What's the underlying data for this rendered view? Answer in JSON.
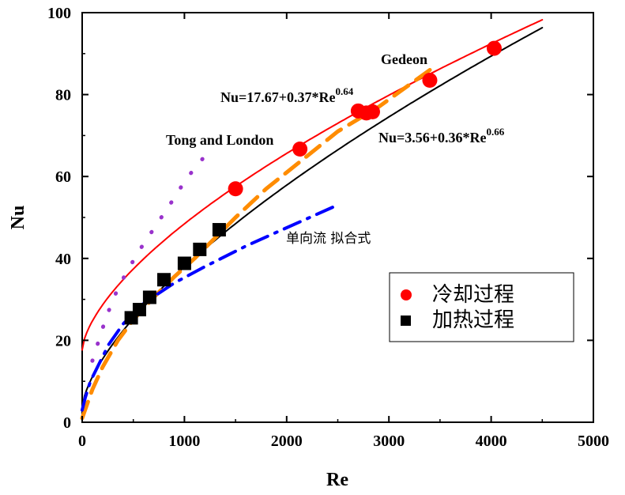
{
  "chart_data": {
    "type": "scatter",
    "xlabel": "Re",
    "ylabel": "Nu",
    "xlim": [
      0,
      5000
    ],
    "ylim": [
      0,
      100
    ],
    "xticks": [
      0,
      1000,
      2000,
      3000,
      4000,
      5000
    ],
    "yticks": [
      0,
      20,
      40,
      60,
      80,
      100
    ],
    "xtick_labels": [
      "0",
      "1000",
      "2000",
      "3000",
      "4000",
      "5000"
    ],
    "ytick_labels": [
      "0",
      "20",
      "40",
      "60",
      "80",
      "100"
    ],
    "grid": false,
    "legend_position": "lower-right",
    "series": [
      {
        "name": "冷却过程",
        "kind": "scatter",
        "marker": "circle",
        "color": "#ff0000",
        "x": [
          1500,
          2130,
          2700,
          2780,
          2840,
          3400,
          4030
        ],
        "y": [
          57,
          66.7,
          76,
          75.5,
          75.8,
          83.5,
          91.3
        ]
      },
      {
        "name": "加热过程",
        "kind": "scatter",
        "marker": "square",
        "color": "#000000",
        "x": [
          480,
          560,
          660,
          800,
          1000,
          1150,
          1340
        ],
        "y": [
          25.5,
          27.5,
          30.5,
          34.8,
          38.8,
          42.2,
          47
        ]
      }
    ],
    "curves": [
      {
        "label": "Nu=17.67+0.37*Re",
        "exponent": "0.64",
        "color": "#ff0000",
        "style": "solid",
        "a": 17.67,
        "b": 0.37,
        "n": 0.64,
        "xrange": [
          0,
          4500
        ]
      },
      {
        "label": "Nu=3.56+0.36*Re",
        "exponent": "0.66",
        "color": "#000000",
        "style": "solid",
        "a": 3.56,
        "b": 0.36,
        "n": 0.66,
        "xrange": [
          0,
          4500
        ]
      },
      {
        "label": "Gedeon",
        "color": "#ff8c00",
        "style": "dash",
        "x": [
          0,
          100,
          200,
          350,
          500,
          700,
          900,
          1100,
          1300,
          1500,
          1800,
          2100,
          2500,
          2900,
          3400
        ],
        "y": [
          1,
          8,
          13.5,
          20,
          25,
          30.5,
          35.5,
          40,
          45,
          50,
          57,
          63,
          71,
          77,
          86
        ]
      },
      {
        "label": "Tong and London",
        "color": "#9932cc",
        "style": "dot",
        "x": [
          100,
          200,
          300,
          420,
          560,
          720,
          880,
          1020,
          1200
        ],
        "y": [
          15,
          23,
          30,
          36,
          42,
          48,
          54,
          59.5,
          65
        ]
      },
      {
        "label": "单向流 拟合式",
        "color": "#0000ff",
        "style": "dashdot",
        "x": [
          0,
          30,
          80,
          160,
          260,
          400,
          600,
          900,
          1200,
          1600,
          2000,
          2450
        ],
        "y": [
          3,
          6,
          10,
          14,
          19,
          24,
          29,
          34,
          38,
          43,
          47.5,
          52.5
        ]
      }
    ],
    "legend": {
      "entries": [
        {
          "label": "冷却过程",
          "marker": "circle",
          "color": "#ff0000"
        },
        {
          "label": "加热过程",
          "marker": "square",
          "color": "#000000"
        }
      ]
    }
  }
}
